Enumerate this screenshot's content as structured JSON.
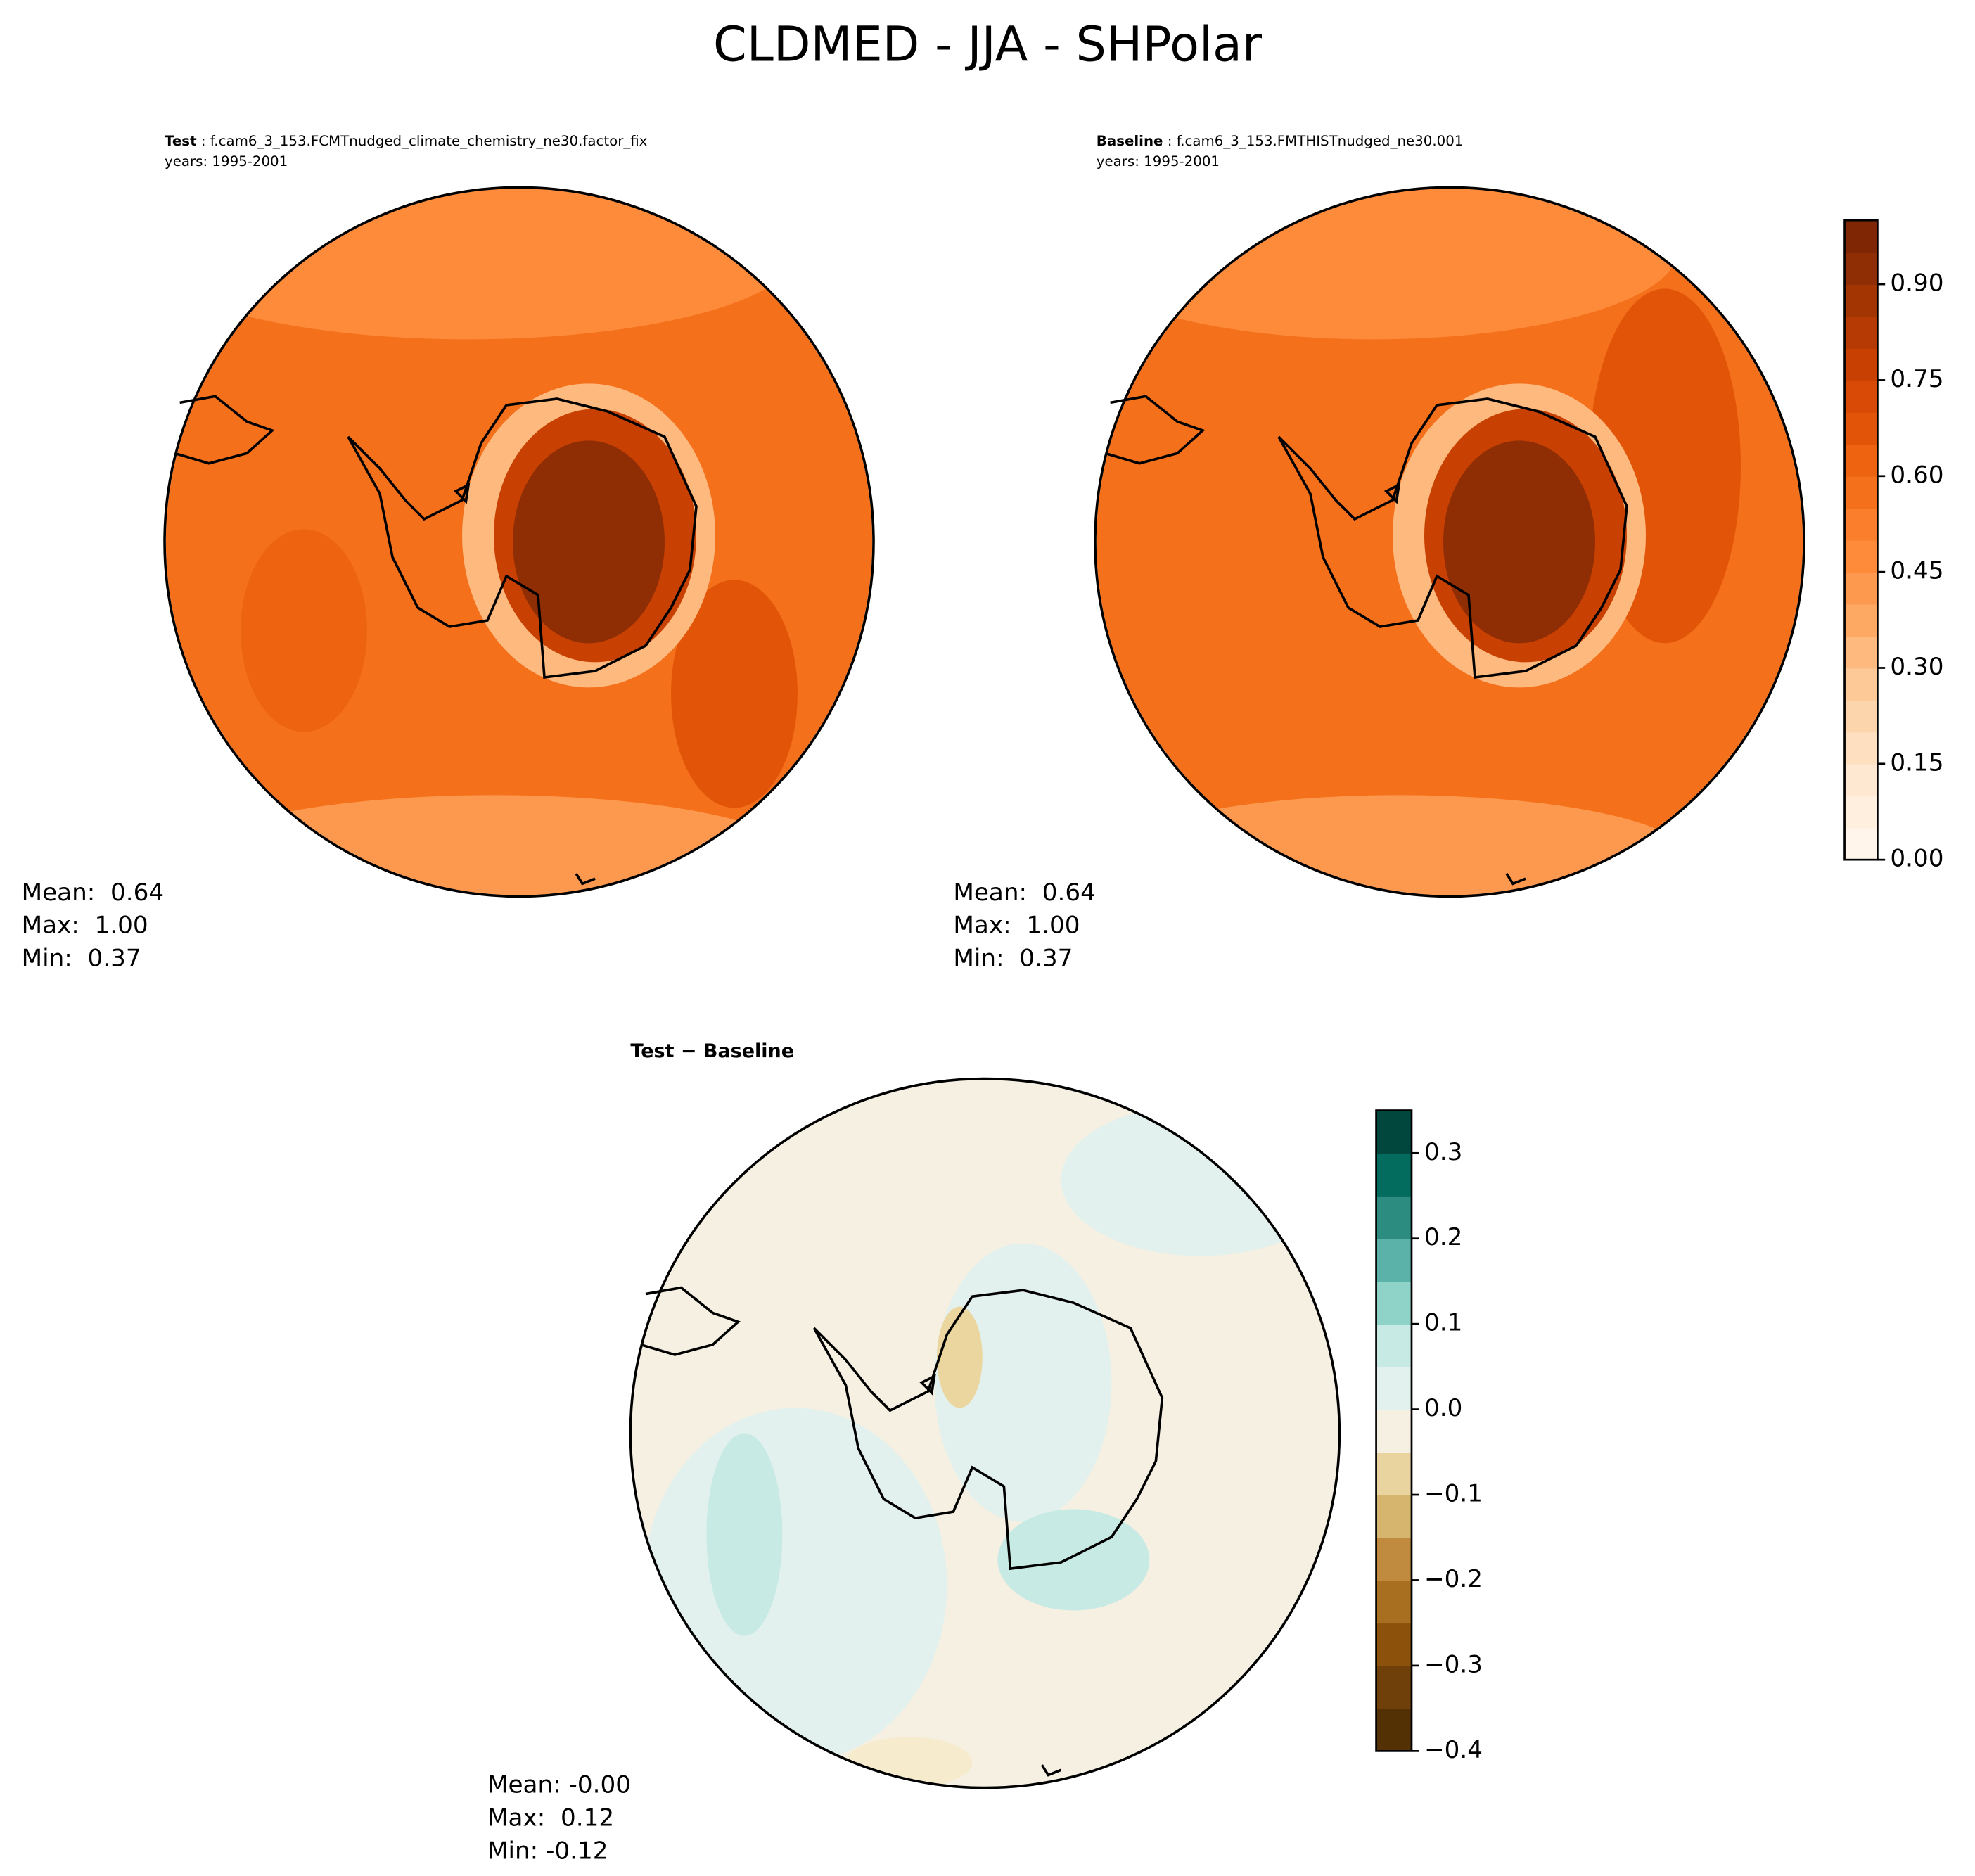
{
  "title": "CLDMED - JJA - SHPolar",
  "panels": [
    {
      "title_bold": "Test",
      "title": " : f.cam6_3_153.FCMTnudged_climate_chemistry_ne30.factor_fix",
      "years": "years: 1995-2001",
      "stats": [
        "Mean:  0.64",
        "Max:  1.00",
        "Min:  0.37"
      ]
    },
    {
      "title_bold": "Baseline",
      "title": " : f.cam6_3_153.FMTHISTnudged_ne30.001",
      "years": "years: 1995-2001",
      "stats": [
        "Mean:  0.64",
        "Max:  1.00",
        "Min:  0.37"
      ]
    },
    {
      "title_bold": "Test − Baseline",
      "stats": [
        "Mean: -0.00",
        "Max:  0.12",
        "Min: -0.12"
      ]
    }
  ],
  "colorbars": [
    {
      "lim": [
        0,
        1
      ],
      "ticks": [
        {
          "value": 0,
          "label": "0.00"
        },
        {
          "value": 0.15,
          "label": "0.15"
        },
        {
          "value": 0.3,
          "label": "0.30"
        },
        {
          "value": 0.45,
          "label": "0.45"
        },
        {
          "value": 0.6,
          "label": "0.60"
        },
        {
          "value": 0.75,
          "label": "0.75"
        },
        {
          "value": 0.9,
          "label": "0.90"
        }
      ],
      "colors": [
        "#fff5eb",
        "#ffefdf",
        "#fee8d2",
        "#fedfc0",
        "#fdd5ad",
        "#fdc997",
        "#fdb97e",
        "#fda863",
        "#fd994e",
        "#fd8b3a",
        "#fa7e2b",
        "#f4701b",
        "#ed6310",
        "#e25508",
        "#d84a05",
        "#c84103",
        "#b53a03",
        "#a33503",
        "#8f2e04",
        "#7f2704"
      ]
    },
    {
      "lim": [
        -0.4,
        0.35
      ],
      "ticks": [
        {
          "value": -0.4,
          "label": "−0.4"
        },
        {
          "value": -0.3,
          "label": "−0.3"
        },
        {
          "value": -0.2,
          "label": "−0.2"
        },
        {
          "value": -0.1,
          "label": "−0.1"
        },
        {
          "value": 0,
          "label": "0.0"
        },
        0.1,
        0.2,
        0.3
      ],
      "colors": [
        "#543005",
        "#70400a",
        "#8c510a",
        "#a96f21",
        "#c08b3e",
        "#d6b56e",
        "#e9d49f",
        "#f5f0e2",
        "#e3f1ee",
        "#c7eae5",
        "#8fd3c8",
        "#5ab2a8",
        "#2d8c80",
        "#046c5f",
        "#01473d"
      ]
    }
  ]
}
